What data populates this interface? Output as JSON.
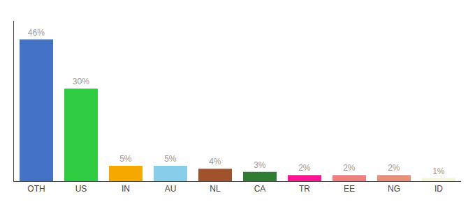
{
  "chart_data": {
    "type": "bar",
    "categories": [
      "OTH",
      "US",
      "IN",
      "AU",
      "NL",
      "CA",
      "TR",
      "EE",
      "NG",
      "ID"
    ],
    "values": [
      46,
      30,
      5,
      5,
      4,
      3,
      2,
      2,
      2,
      1
    ],
    "value_labels": [
      "46%",
      "30%",
      "5%",
      "5%",
      "4%",
      "3%",
      "2%",
      "2%",
      "2%",
      "1%"
    ],
    "colors": [
      "#4472C4",
      "#2ECC40",
      "#F4A800",
      "#87CEEB",
      "#A0522D",
      "#2E7D32",
      "#FF1493",
      "#F08080",
      "#E8907A",
      "#F5F5DC"
    ],
    "ylim": [
      0,
      52
    ],
    "data_labels": true,
    "tick_labels": "x",
    "grid": false
  }
}
